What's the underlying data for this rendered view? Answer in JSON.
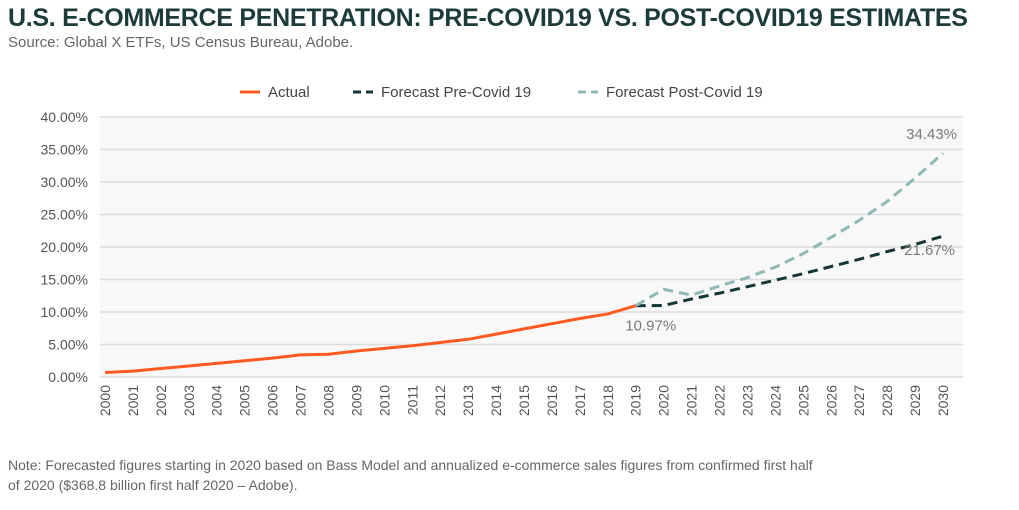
{
  "title": "U.S. E-COMMERCE PENETRATION: PRE-COVID19 VS. POST-COVID19 ESTIMATES",
  "source": "Source: Global X ETFs, US Census Bureau, Adobe.",
  "note_line1": "Note: Forecasted figures starting in 2020 based on Bass Model and annualized e-commerce sales figures from confirmed first half",
  "note_line2": "of 2020 ($368.8 billion first half 2020 – Adobe).",
  "chart_data": {
    "type": "line",
    "title": "U.S. E-COMMERCE PENETRATION: PRE-COVID19 VS. POST-COVID19 ESTIMATES",
    "xlabel": "",
    "ylabel": "",
    "ylim": [
      0,
      40
    ],
    "yticks": [
      "0.00%",
      "5.00%",
      "10.00%",
      "15.00%",
      "20.00%",
      "25.00%",
      "30.00%",
      "35.00%",
      "40.00%"
    ],
    "x": [
      2000,
      2001,
      2002,
      2003,
      2004,
      2005,
      2006,
      2007,
      2008,
      2009,
      2010,
      2011,
      2012,
      2013,
      2014,
      2015,
      2016,
      2017,
      2018,
      2019,
      2020,
      2021,
      2022,
      2023,
      2024,
      2025,
      2026,
      2027,
      2028,
      2029,
      2030
    ],
    "legend_position": "top-center",
    "grid": true,
    "series": [
      {
        "name": "Actual",
        "color": "#ff5a1f",
        "dash": "solid",
        "x": [
          2000,
          2001,
          2002,
          2003,
          2004,
          2005,
          2006,
          2007,
          2008,
          2009,
          2010,
          2011,
          2012,
          2013,
          2014,
          2015,
          2016,
          2017,
          2018,
          2019
        ],
        "values": [
          0.7,
          0.9,
          1.3,
          1.7,
          2.1,
          2.5,
          2.9,
          3.4,
          3.5,
          4.0,
          4.4,
          4.8,
          5.3,
          5.8,
          6.6,
          7.4,
          8.2,
          9.0,
          9.7,
          10.97
        ]
      },
      {
        "name": "Forecast Pre-Covid 19",
        "color": "#163537",
        "dash": "dashed",
        "x": [
          2019,
          2020,
          2021,
          2022,
          2023,
          2024,
          2025,
          2026,
          2027,
          2028,
          2029,
          2030
        ],
        "values": [
          10.97,
          11.0,
          12.0,
          12.9,
          13.9,
          14.9,
          15.9,
          17.0,
          18.1,
          19.3,
          20.4,
          21.67
        ]
      },
      {
        "name": "Forecast Post-Covid 19",
        "color": "#8fb8b6",
        "dash": "dashed",
        "x": [
          2019,
          2020,
          2021,
          2022,
          2023,
          2024,
          2025,
          2026,
          2027,
          2028,
          2029,
          2030
        ],
        "values": [
          10.97,
          13.5,
          12.6,
          14.0,
          15.3,
          16.9,
          19.0,
          21.5,
          24.1,
          27.0,
          30.6,
          34.43
        ]
      }
    ],
    "annotations": [
      {
        "text": "10.97%",
        "x": 2019,
        "y": 10.97
      },
      {
        "text": "21.67%",
        "x": 2030,
        "y": 21.67
      },
      {
        "text": "34.43%",
        "x": 2030,
        "y": 34.43
      }
    ]
  }
}
